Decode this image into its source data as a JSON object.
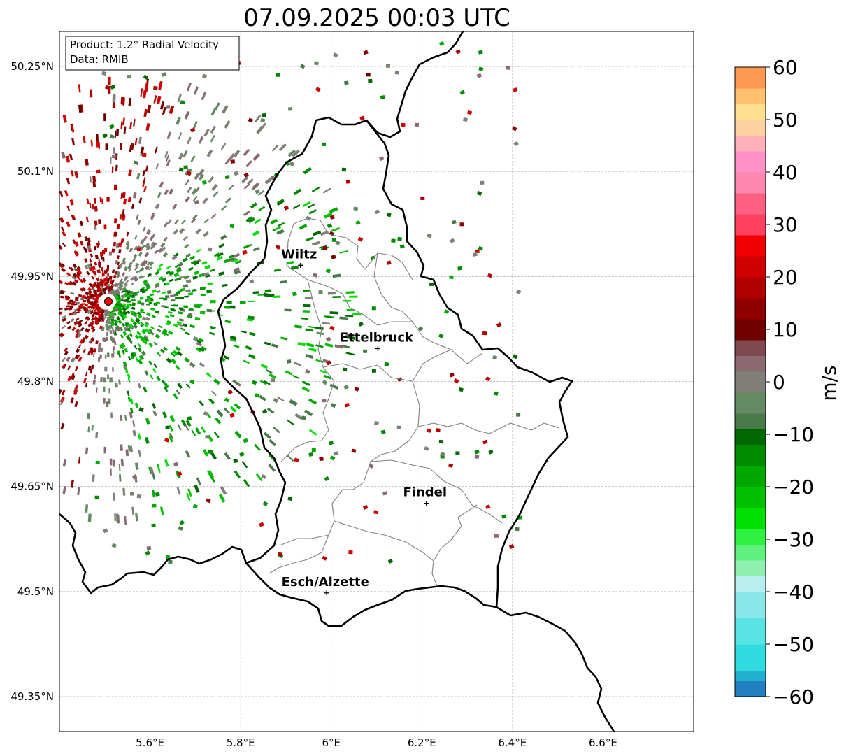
{
  "title": "07.09.2025 00:03 UTC",
  "info_box": {
    "product": "Product: 1.2° Radial Velocity",
    "source": "Data: RMIB"
  },
  "map": {
    "lon_range": [
      5.4,
      6.8
    ],
    "lat_range": [
      49.3,
      50.3
    ],
    "lon_ticks": [
      {
        "value": 5.6,
        "label": "5.6°E"
      },
      {
        "value": 5.8,
        "label": "5.8°E"
      },
      {
        "value": 6.0,
        "label": "6°E"
      },
      {
        "value": 6.2,
        "label": "6.2°E"
      },
      {
        "value": 6.4,
        "label": "6.4°E"
      },
      {
        "value": 6.6,
        "label": "6.6°E"
      }
    ],
    "lat_ticks": [
      {
        "value": 49.35,
        "label": "49.35°N"
      },
      {
        "value": 49.5,
        "label": "49.5°N"
      },
      {
        "value": 49.65,
        "label": "49.65°N"
      },
      {
        "value": 49.8,
        "label": "49.8°N"
      },
      {
        "value": 49.95,
        "label": "49.95°N"
      },
      {
        "value": 50.1,
        "label": "50.1°N"
      },
      {
        "value": 50.25,
        "label": "50.25°N"
      }
    ],
    "radar_site": {
      "lon": 5.505,
      "lat": 49.914
    },
    "cities": [
      {
        "name": "Wiltz",
        "lon": 5.932,
        "lat": 49.966
      },
      {
        "name": "Ettelbruck",
        "lon": 6.103,
        "lat": 49.847
      },
      {
        "name": "Findel",
        "lon": 6.21,
        "lat": 49.626
      },
      {
        "name": "Esch/Alzette",
        "lon": 5.99,
        "lat": 49.498
      }
    ],
    "colors": {
      "border": "#000000",
      "canton_lines": "#808080",
      "radar_marker": "#ff0000"
    }
  },
  "colorbar": {
    "label": "m/s",
    "min": -60,
    "max": 60,
    "ticks": [
      {
        "value": 60,
        "label": "60"
      },
      {
        "value": 50,
        "label": "50"
      },
      {
        "value": 40,
        "label": "40"
      },
      {
        "value": 30,
        "label": "30"
      },
      {
        "value": 20,
        "label": "20"
      },
      {
        "value": 10,
        "label": "10"
      },
      {
        "value": 0,
        "label": "0"
      },
      {
        "value": -10,
        "label": "−10"
      },
      {
        "value": -20,
        "label": "−20"
      },
      {
        "value": -30,
        "label": "−30"
      },
      {
        "value": -40,
        "label": "−40"
      },
      {
        "value": -50,
        "label": "−50"
      },
      {
        "value": -60,
        "label": "−60"
      }
    ],
    "stops": [
      {
        "from": -60,
        "to": -57,
        "color": "#2080c0"
      },
      {
        "from": -57,
        "to": -55,
        "color": "#22b0d0"
      },
      {
        "from": -55,
        "to": -50,
        "color": "#30dce0"
      },
      {
        "from": -50,
        "to": -45,
        "color": "#58e4e4"
      },
      {
        "from": -45,
        "to": -40,
        "color": "#8ce8e8"
      },
      {
        "from": -40,
        "to": -37,
        "color": "#b8eef0"
      },
      {
        "from": -37,
        "to": -34,
        "color": "#90f0b0"
      },
      {
        "from": -34,
        "to": -31,
        "color": "#60f080"
      },
      {
        "from": -31,
        "to": -28,
        "color": "#30f040"
      },
      {
        "from": -28,
        "to": -24,
        "color": "#00e000"
      },
      {
        "from": -24,
        "to": -20,
        "color": "#00c000"
      },
      {
        "from": -20,
        "to": -16,
        "color": "#00a800"
      },
      {
        "from": -16,
        "to": -12,
        "color": "#008a00"
      },
      {
        "from": -12,
        "to": -9,
        "color": "#006800"
      },
      {
        "from": -9,
        "to": -6,
        "color": "#4a7a4a"
      },
      {
        "from": -6,
        "to": -2,
        "color": "#638a63"
      },
      {
        "from": -2,
        "to": 2,
        "color": "#808078"
      },
      {
        "from": 2,
        "to": 5,
        "color": "#8a6a70"
      },
      {
        "from": 5,
        "to": 8,
        "color": "#804850"
      },
      {
        "from": 8,
        "to": 12,
        "color": "#700000"
      },
      {
        "from": 12,
        "to": 16,
        "color": "#900000"
      },
      {
        "from": 16,
        "to": 20,
        "color": "#b00000"
      },
      {
        "from": 20,
        "to": 24,
        "color": "#d00000"
      },
      {
        "from": 24,
        "to": 28,
        "color": "#f00000"
      },
      {
        "from": 28,
        "to": 32,
        "color": "#ff4060"
      },
      {
        "from": 32,
        "to": 36,
        "color": "#ff6080"
      },
      {
        "from": 36,
        "to": 40,
        "color": "#ff88b0"
      },
      {
        "from": 40,
        "to": 44,
        "color": "#ff90c8"
      },
      {
        "from": 44,
        "to": 47,
        "color": "#ffb0b8"
      },
      {
        "from": 47,
        "to": 50,
        "color": "#ffd0a0"
      },
      {
        "from": 50,
        "to": 53,
        "color": "#ffe090"
      },
      {
        "from": 53,
        "to": 56,
        "color": "#ffc070"
      },
      {
        "from": 56,
        "to": 60,
        "color": "#ff9850"
      }
    ]
  }
}
